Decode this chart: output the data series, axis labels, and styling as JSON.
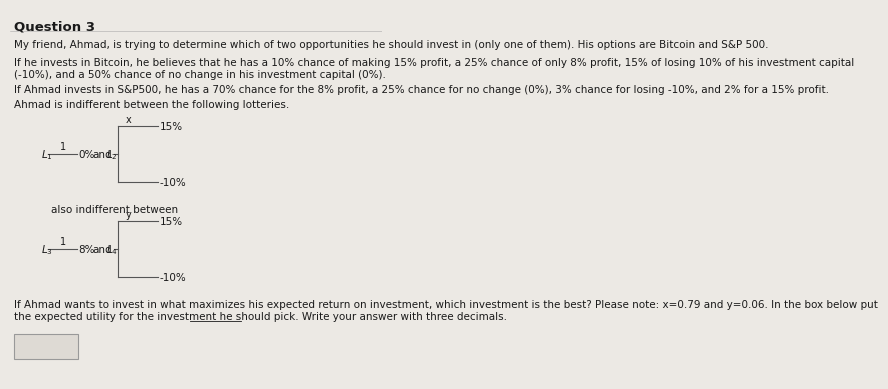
{
  "title": "Question 3",
  "bg_color": "#ece9e4",
  "text_color": "#1a1a1a",
  "para1": "My friend, Ahmad, is trying to determine which of two opportunities he should invest in (only one of them). His options are Bitcoin and S&P 500.",
  "para2a": "If he invests in Bitcoin, he believes that he has a 10% chance of making 15% profit, a 25% chance of only 8% profit, 15% of losing 10% of his investment capital",
  "para2b": "(-10%), and a 50% chance of no change in his investment capital (0%).",
  "para3": "If Ahmad invests in S&P500, he has a 70% chance for the 8% profit, a 25% chance for no change (0%), 3% chance for losing -10%, and 2% for a 15% profit.",
  "para4": "Ahmad is indifferent between the following lotteries.",
  "para5a": "If Ahmad wants to invest in what maximizes his expected return on investment, which investment is the best? Please note: x=0.79 and y=0.06. In the box below put",
  "para5b": "the expected utility for the investment he should pick. Write your answer with three decimals.",
  "also_text": "also indifferent between",
  "answer_box_color": "#dedad4",
  "line_color": "#555555",
  "font_size_title": 9.5,
  "font_size_body": 7.5,
  "font_size_small": 7
}
